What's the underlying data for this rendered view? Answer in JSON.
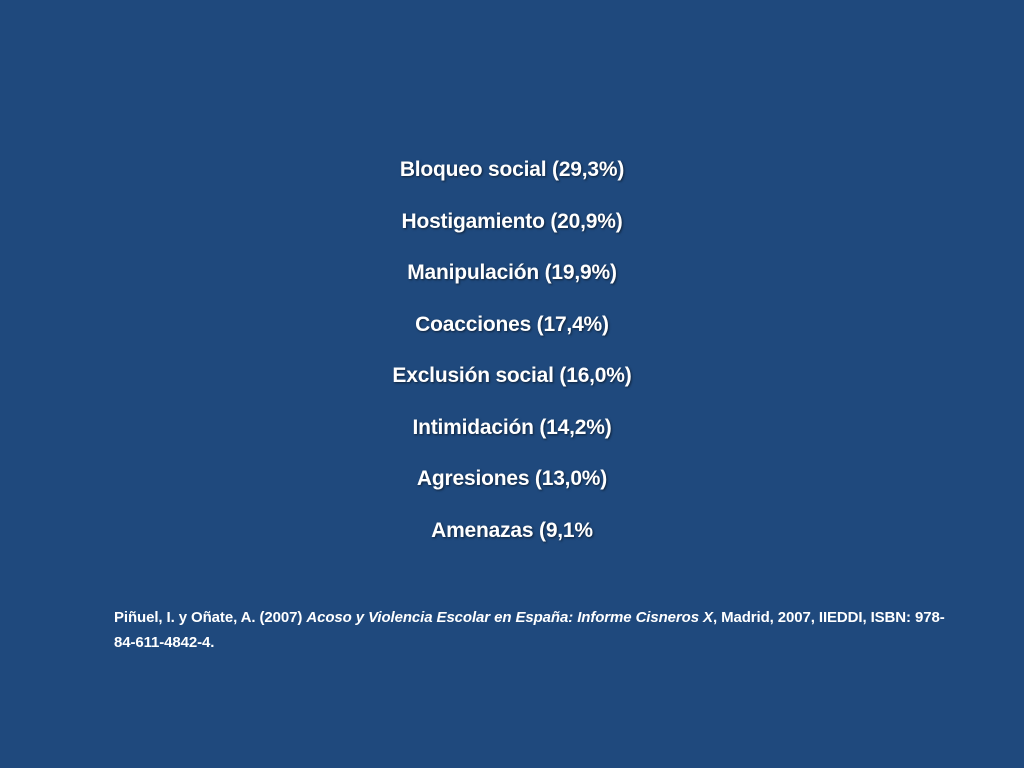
{
  "items": [
    "Bloqueo social (29,3%)",
    "Hostigamiento (20,9%)",
    "Manipulación (19,9%)",
    "Coacciones (17,4%)",
    "Exclusión social (16,0%)",
    "Intimidación (14,2%)",
    "Agresiones (13,0%)",
    "Amenazas (9,1%"
  ],
  "citation": {
    "authors": "Piñuel, I. y Oñate, A. (2007) ",
    "title": "Acoso y Violencia Escolar en España: Informe Cisneros X",
    "rest": ", Madrid, 2007, IIEDDI, ISBN: 978-84-611-4842-4."
  },
  "colors": {
    "background": "#1f497d",
    "text": "#ffffff"
  }
}
